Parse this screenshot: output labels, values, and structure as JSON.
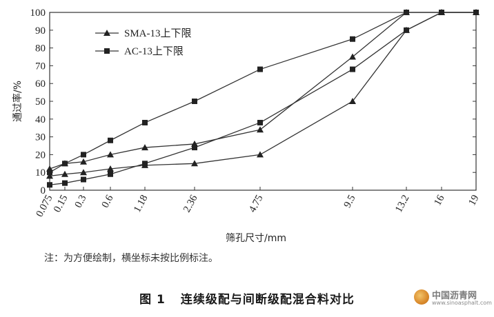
{
  "chart_data": {
    "type": "line",
    "ylabel": "通过率/%",
    "xlabel": "筛孔尺寸/mm",
    "categories": [
      "0.075",
      "0.15",
      "0.3",
      "0.6",
      "1.18",
      "2.36",
      "4.75",
      "9.5",
      "13.2",
      "16",
      "19"
    ],
    "x_positions": [
      0.075,
      0.15,
      0.3,
      0.6,
      1.18,
      2.36,
      4.75,
      9.5,
      13.2,
      16,
      19
    ],
    "ylim": [
      0,
      100
    ],
    "yticks": [
      "0",
      "10",
      "20",
      "30",
      "40",
      "50",
      "60",
      "70",
      "80",
      "90",
      "100"
    ],
    "legend": {
      "placement": "top-left"
    },
    "series": [
      {
        "name": "SMA-13上下限",
        "marker": "triangle",
        "x": [
          0.075,
          0.15,
          0.3,
          0.6,
          1.18,
          2.36,
          4.75,
          9.5,
          13.2,
          16,
          19
        ],
        "values": [
          12,
          15,
          16,
          20,
          24,
          26,
          34,
          75,
          100,
          100,
          100
        ]
      },
      {
        "name": "",
        "marker": "triangle",
        "x": [
          0.075,
          0.15,
          0.3,
          0.6,
          1.18,
          2.36,
          4.75,
          9.5,
          13.2,
          16,
          19
        ],
        "values": [
          8,
          9,
          10,
          12,
          14,
          15,
          20,
          50,
          90,
          100,
          100
        ]
      },
      {
        "name": "AC-13上下限",
        "marker": "square",
        "x": [
          0.075,
          0.15,
          0.3,
          0.6,
          1.18,
          2.36,
          4.75,
          9.5,
          13.2,
          16,
          19
        ],
        "values": [
          10,
          15,
          20,
          28,
          38,
          50,
          68,
          85,
          100,
          100,
          100
        ]
      },
      {
        "name": "",
        "marker": "square",
        "x": [
          0.075,
          0.15,
          0.3,
          0.6,
          1.18,
          2.36,
          4.75,
          9.5,
          13.2,
          16,
          19
        ],
        "values": [
          3,
          4,
          6,
          9,
          15,
          24,
          38,
          68,
          90,
          100,
          100
        ]
      }
    ]
  },
  "note": "注：为方便绘制，横坐标未按比例标注。",
  "caption": {
    "number": "图 1",
    "title": "连续级配与间断级配混合料对比"
  },
  "watermark": {
    "name": "中国沥青网",
    "url": "www.sinoasphalt.com"
  }
}
